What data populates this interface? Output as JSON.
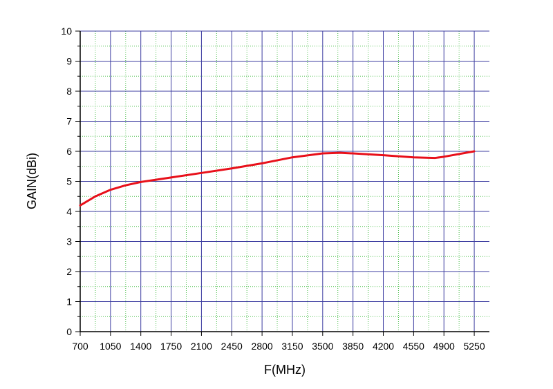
{
  "chart_data": {
    "type": "line",
    "xlabel": "F(MHz)",
    "ylabel": "GAIN(dBi)",
    "x": [
      700,
      875,
      1050,
      1225,
      1400,
      1750,
      2100,
      2450,
      2800,
      3150,
      3500,
      3700,
      3850,
      4200,
      4550,
      4800,
      4900,
      5250
    ],
    "series": [
      {
        "color": "#e8101a",
        "values": [
          4.2,
          4.5,
          4.72,
          4.87,
          4.98,
          5.13,
          5.28,
          5.43,
          5.6,
          5.8,
          5.93,
          5.95,
          5.93,
          5.87,
          5.8,
          5.78,
          5.82,
          6.0
        ]
      }
    ],
    "xlim": [
      700,
      5425
    ],
    "xticks": [
      700,
      1050,
      1400,
      1750,
      2100,
      2450,
      2800,
      3150,
      3500,
      3850,
      4200,
      4550,
      4900,
      5250
    ],
    "ylim": [
      0,
      10
    ],
    "yticks": [
      0,
      1,
      2,
      3,
      4,
      5,
      6,
      7,
      8,
      9,
      10
    ],
    "grid": true,
    "grid_color": "#3c3ca0",
    "minor_grid_color": "#4cbf4c"
  }
}
